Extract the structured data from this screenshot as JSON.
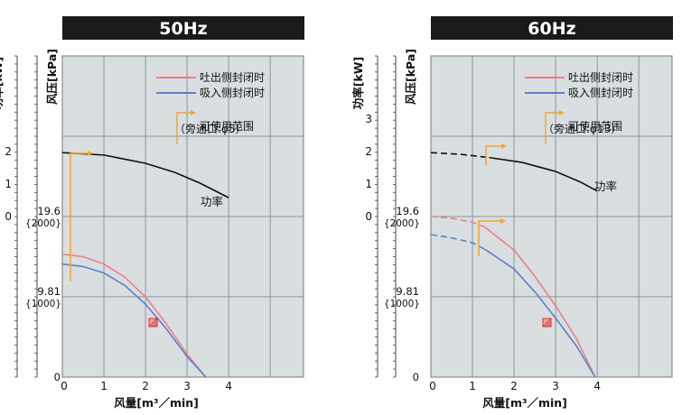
{
  "chart_data": [
    {
      "type": "line",
      "title": "50Hz",
      "xlabel": "风量[m³／min]",
      "ylabel_pressure": "风压[kPa]",
      "ylabel_power": "功率[kW]",
      "x_ticks": [
        "0",
        "1",
        "2",
        "3",
        "4"
      ],
      "xlim": [
        0,
        5.8
      ],
      "pressure_ylim": [
        0,
        39.2
      ],
      "pressure_ticks": [
        {
          "value": 19.6,
          "label": "19.6",
          "sub": "{2000}"
        },
        {
          "value": 9.81,
          "label": "9.81",
          "sub": "{1000}"
        },
        {
          "value": 0,
          "label": "0",
          "sub": ""
        }
      ],
      "power_ticks": [
        "2",
        "1",
        "0"
      ],
      "power_label": "功率",
      "legend": [
        {
          "name": "吐出侧封闭时",
          "color": "#f07d86"
        },
        {
          "name": "吸入侧封闭时",
          "color": "#5b82c9"
        },
        {
          "name": "可使用范围",
          "color": "#f5a623"
        }
      ],
      "legend_note": "（旁通口:φ5）",
      "accent_color": "#f5a623",
      "series": [
        {
          "name": "吐出侧封闭时",
          "color": "#f07d86",
          "x": [
            0,
            0.5,
            1.0,
            1.5,
            2.0,
            2.5,
            3.0,
            3.45
          ],
          "y": [
            15.0,
            14.7,
            13.8,
            12.2,
            9.8,
            6.5,
            2.8,
            0
          ]
        },
        {
          "name": "吸入侧封闭时",
          "color": "#5b82c9",
          "x": [
            0,
            0.5,
            1.0,
            1.5,
            2.0,
            2.5,
            3.0,
            3.45
          ],
          "y": [
            13.8,
            13.5,
            12.7,
            11.2,
            8.9,
            5.9,
            2.5,
            0
          ]
        },
        {
          "name": "功率",
          "color": "#111111",
          "x": [
            0,
            1,
            2,
            2.7,
            3.3,
            4.0
          ],
          "y": [
            27.4,
            27.1,
            26.1,
            25.0,
            23.7,
            21.9
          ]
        }
      ]
    },
    {
      "type": "line",
      "title": "60Hz",
      "xlabel": "风量[m³／min]",
      "ylabel_pressure": "风压[kPa]",
      "ylabel_power": "功率[kW]",
      "x_ticks": [
        "0",
        "1",
        "2",
        "3",
        "4"
      ],
      "xlim": [
        0,
        5.8
      ],
      "pressure_ylim": [
        0,
        39.2
      ],
      "pressure_ticks": [
        {
          "value": 19.6,
          "label": "19.6",
          "sub": "{2000}"
        },
        {
          "value": 9.81,
          "label": "9.81",
          "sub": "{1000}"
        },
        {
          "value": 0,
          "label": "0",
          "sub": ""
        }
      ],
      "power_ticks": [
        "3",
        "2",
        "1",
        "0"
      ],
      "power_label": "功率",
      "legend": [
        {
          "name": "吐出侧封闭时",
          "color": "#f07d86"
        },
        {
          "name": "吸入侧封闭时",
          "color": "#5b82c9"
        },
        {
          "name": "可使用范围",
          "color": "#f5a623"
        }
      ],
      "legend_note": "（旁通口:φ13）",
      "accent_color": "#f5a623",
      "series": [
        {
          "name": "吐出侧封闭时",
          "color": "#f07d86",
          "x": [
            0,
            0.5,
            1.0,
            1.3,
            2.0,
            2.5,
            3.0,
            3.5,
            3.95
          ],
          "y": [
            19.6,
            19.4,
            18.9,
            18.3,
            15.5,
            12.3,
            8.7,
            4.7,
            0
          ]
        },
        {
          "name": "吸入侧封闭时",
          "color": "#5b82c9",
          "x": [
            0,
            0.5,
            1.0,
            1.3,
            2.0,
            2.5,
            3.0,
            3.5,
            3.95
          ],
          "y": [
            17.4,
            17.0,
            16.4,
            15.6,
            13.2,
            10.4,
            7.2,
            3.8,
            0
          ]
        },
        {
          "name": "功率",
          "color": "#111111",
          "x": [
            0,
            0.7,
            1.4,
            2.2,
            3.0,
            3.6,
            4.0
          ],
          "y": [
            27.4,
            27.2,
            26.8,
            26.2,
            25.1,
            23.8,
            22.7
          ]
        }
      ]
    }
  ]
}
